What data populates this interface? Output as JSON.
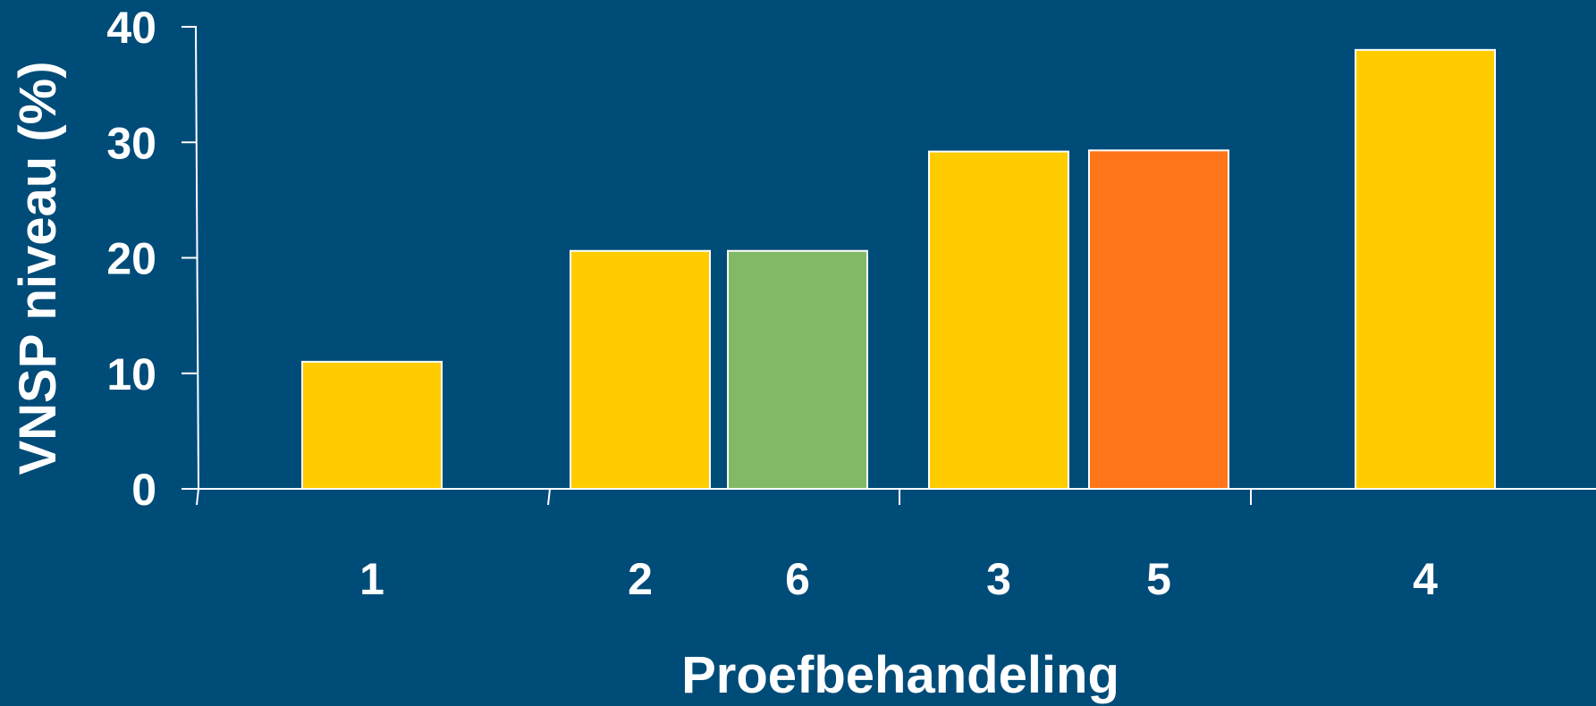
{
  "background_color": "#004c79",
  "chart_data": {
    "type": "bar",
    "title": "",
    "xlabel": "Proefbehandeling",
    "ylabel": "VNSP niveau (%)",
    "ylim": [
      0,
      40
    ],
    "yticks": [
      "0",
      "10",
      "20",
      "30",
      "40"
    ],
    "grid": false,
    "legend": "none",
    "categories": [
      "1",
      "2",
      "6",
      "3",
      "5",
      "4"
    ],
    "values": [
      11,
      20.6,
      20.6,
      29.2,
      29.3,
      38
    ],
    "colors": [
      "#ffcc00",
      "#ffcc00",
      "#82b966",
      "#ffcc00",
      "#ff7519",
      "#ffcc00"
    ]
  }
}
